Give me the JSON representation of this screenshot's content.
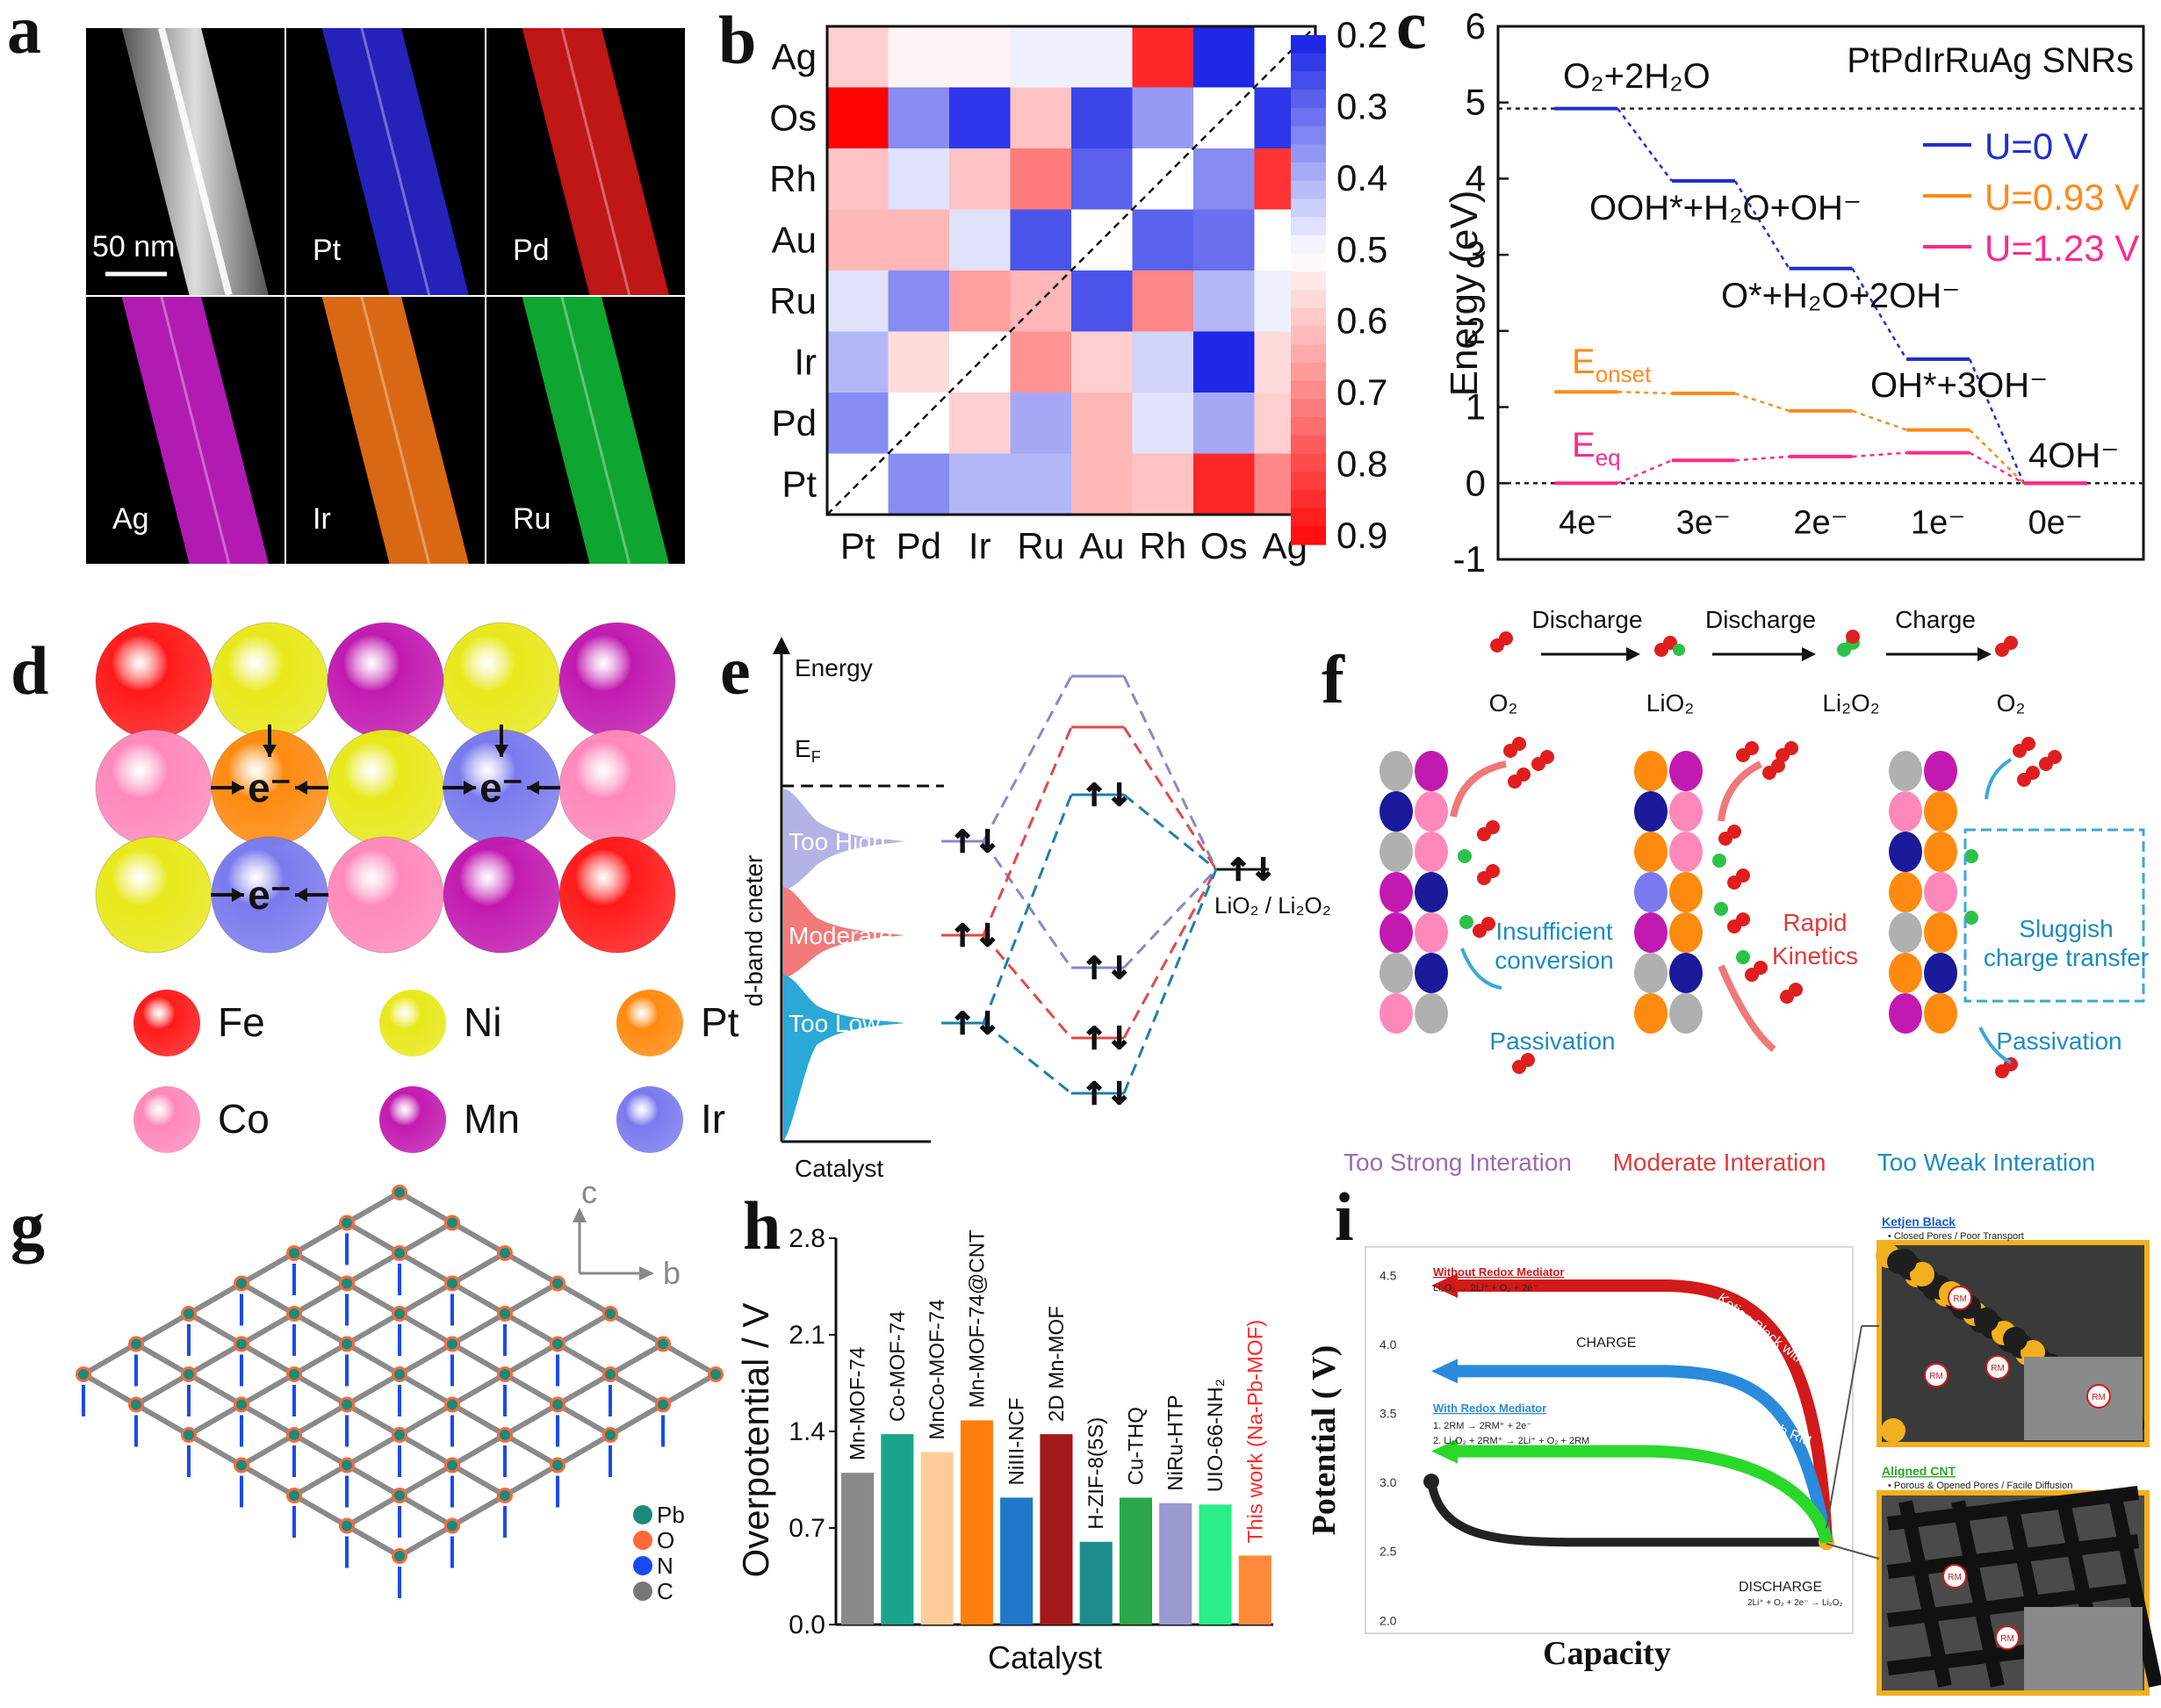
{
  "panel_labels": [
    "a",
    "b",
    "c",
    "d",
    "e",
    "f",
    "g",
    "h",
    "i"
  ],
  "a": {
    "scale_bar": "50 nm",
    "tiles": [
      {
        "label": "",
        "color": "#bcbcbc"
      },
      {
        "label": "Pt",
        "color": "#2a28d8"
      },
      {
        "label": "Pd",
        "color": "#e01a1a"
      },
      {
        "label": "Ag",
        "color": "#d020d0"
      },
      {
        "label": "Ir",
        "color": "#ff7a18"
      },
      {
        "label": "Ru",
        "color": "#12c23a"
      }
    ]
  },
  "chart_data": [
    {
      "panel": "b",
      "type": "heatmap",
      "rows": [
        "Ag",
        "Os",
        "Rh",
        "Au",
        "Ru",
        "Ir",
        "Pd",
        "Pt"
      ],
      "cols": [
        "Pt",
        "Pd",
        "Ir",
        "Ru",
        "Au",
        "Rh",
        "Os",
        "Ag"
      ],
      "values": [
        [
          0.58,
          0.52,
          0.52,
          0.48,
          0.48,
          0.86,
          0.2,
          0.5
        ],
        [
          0.92,
          0.34,
          0.22,
          0.6,
          0.24,
          0.36,
          0.5,
          0.22
        ],
        [
          0.6,
          0.46,
          0.6,
          0.72,
          0.28,
          0.5,
          0.34,
          0.84
        ],
        [
          0.62,
          0.62,
          0.46,
          0.26,
          0.5,
          0.28,
          0.3,
          0.5
        ],
        [
          0.46,
          0.34,
          0.66,
          0.62,
          0.26,
          0.7,
          0.4,
          0.48
        ],
        [
          0.4,
          0.56,
          0.5,
          0.68,
          0.58,
          0.44,
          0.2,
          0.56
        ],
        [
          0.34,
          0.5,
          0.58,
          0.38,
          0.62,
          0.46,
          0.38,
          0.58
        ],
        [
          0.5,
          0.34,
          0.4,
          0.4,
          0.62,
          0.6,
          0.86,
          0.7
        ]
      ],
      "colorbar_ticks": [
        "0.2",
        "0.3",
        "0.4",
        "0.5",
        "0.6",
        "0.7",
        "0.8",
        "0.9"
      ],
      "vmin": 0.2,
      "vmax": 0.9
    },
    {
      "panel": "c",
      "type": "line",
      "title": "PtPdIrRuAg SNRs",
      "ylabel": "Energy (eV)",
      "ylim": [
        -1,
        6
      ],
      "yticks": [
        "-1",
        "0",
        "1",
        "2",
        "3",
        "4",
        "5",
        "6"
      ],
      "xticks": [
        "4e⁻",
        "3e⁻",
        "2e⁻",
        "1e⁻",
        "0e⁻"
      ],
      "series": [
        {
          "name": "U=0 V",
          "color": "#1f2fd0",
          "values": [
            4.92,
            3.97,
            2.82,
            1.63,
            0.0
          ]
        },
        {
          "name": "U=0.93 V",
          "color": "#ff8a1a",
          "values": [
            1.2,
            1.18,
            0.95,
            0.7,
            0.0
          ]
        },
        {
          "name": "U=1.23 V",
          "color": "#ff2a8a",
          "values": [
            0.0,
            0.3,
            0.35,
            0.4,
            0.0
          ]
        }
      ],
      "reference_lines": [
        4.92,
        0.0
      ],
      "annotations": {
        "o2": "O₂+2H₂O",
        "ooh": "OOH*+H₂O+OH⁻",
        "o": "O*+H₂O+2OH⁻",
        "oh": "OH*+3OH⁻",
        "oh4": "4OH⁻",
        "eonset": "E",
        "eonset_sub": "onset",
        "eeq": "E",
        "eeq_sub": "eq"
      }
    },
    {
      "panel": "h",
      "type": "bar",
      "ylabel": "Overpotential / V",
      "xlabel": "Catalyst",
      "ylim": [
        0,
        2.8
      ],
      "yticks": [
        "0.0",
        "0.7",
        "1.4",
        "2.1",
        "2.8"
      ],
      "categories": [
        "Mn-MOF-74",
        "Co-MOF-74",
        "MnCo-MOF-74",
        "Mn-MOF-74@CNT",
        "NiIII-NCF",
        "2D Mn-MOF",
        "H-ZIF-8(5S)",
        "Cu-THQ",
        "NiRu-HTP",
        "UIO-66-NH₂",
        "This work (Na-Pb-MOF)"
      ],
      "values": [
        1.1,
        1.38,
        1.25,
        1.48,
        0.92,
        1.38,
        0.6,
        0.92,
        0.88,
        0.87,
        0.5
      ],
      "colors": [
        "#8a8a8a",
        "#1aa58a",
        "#ffcc99",
        "#ff7f0e",
        "#1f78c8",
        "#a41a1a",
        "#1e8c8c",
        "#2aa84a",
        "#9a9ad0",
        "#2aee88",
        "#ff8a3a"
      ]
    },
    {
      "panel": "i",
      "type": "line",
      "ylabel": "Potential ( V)",
      "xlabel": "Capacity",
      "yticks": [
        "2.0",
        "2.5",
        "3.0",
        "3.5",
        "4.0",
        "4.5"
      ]
    }
  ],
  "d": {
    "legend": [
      {
        "label": "Fe",
        "color": "#ff1a1a"
      },
      {
        "label": "Ni",
        "color": "#e8e81a"
      },
      {
        "label": "Pt",
        "color": "#ff8a10"
      },
      {
        "label": "Co",
        "color": "#ff88bb"
      },
      {
        "label": "Mn",
        "color": "#c21ab0"
      },
      {
        "label": "Ir",
        "color": "#7a7aee"
      }
    ],
    "electron": "e⁻"
  },
  "e": {
    "energy": "Energy",
    "ef": "E",
    "ef_sub": "F",
    "axis": "d-band cneter",
    "catalyst": "Catalyst",
    "too_high": "Too High",
    "moderate": "Moderate",
    "too_low": "Too Low",
    "product": "LiO₂ / Li₂O₂"
  },
  "f": {
    "steps": [
      "Discharge",
      "Discharge",
      "Charge"
    ],
    "species": [
      "O₂",
      "LiO₂",
      "Li₂O₂",
      "O₂"
    ],
    "insufficient": "Insufficient",
    "conversion": "conversion",
    "passivation": "Passivation",
    "rapid": "Rapid",
    "kinetics": "Kinetics",
    "sluggish": "Sluggish",
    "charge_transfer": "charge transfer",
    "strong": "Too Strong Interation",
    "moderate": "Moderate Interation",
    "weak": "Too Weak Interation"
  },
  "g": {
    "axis_c": "c",
    "axis_b": "b",
    "legend": [
      {
        "label": "Pb",
        "color": "#1a8a7a"
      },
      {
        "label": "O",
        "color": "#ff6a3a"
      },
      {
        "label": "N",
        "color": "#1a4aee"
      },
      {
        "label": "C",
        "color": "#777777"
      }
    ]
  },
  "i": {
    "without": "Without Redox Mediator",
    "without_eq": "Li₂O₂ → 2Li⁺ + O₂ + 2e⁻",
    "charge": "CHARGE",
    "with": "With Redox Mediator",
    "with_eq1": "1.  2RM → 2RM⁺ + 2e⁻",
    "with_eq2": "2.  Li₂O₂ + 2RM⁺ → 2Li⁺ + O₂ + 2RM",
    "discharge": "DISCHARGE",
    "discharge_eq": "2Li⁺ + O₂ + 2e⁻ → Li₂O₂",
    "ketjen_without": "Ketjen Black without RM",
    "ketjen_with": "Ketjen Black with RM",
    "aligned_with": "Aligned CNT with RM",
    "ketjen_title": "Ketjen Black",
    "ketjen_desc": "Closed Pores / Poor Transport",
    "cnt_title": "Aligned CNT",
    "cnt_desc": "Porous & Opened Pores / Facile Diffusion",
    "rm": "RM"
  }
}
